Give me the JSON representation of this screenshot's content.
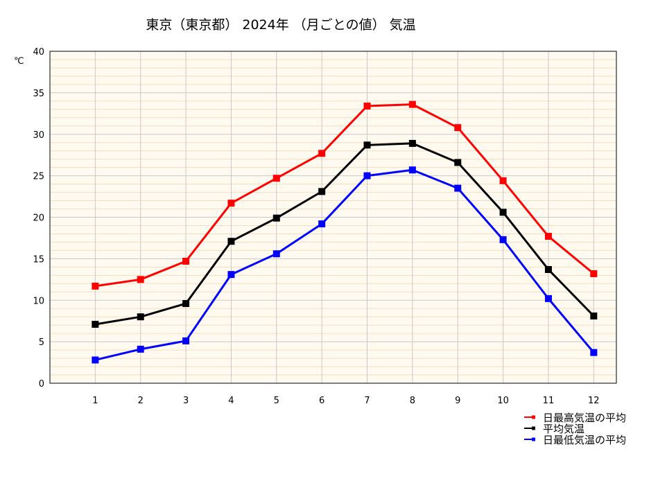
{
  "chart_data": {
    "type": "line",
    "title": "東京（東京都） 2024年 （月ごとの値） 気温",
    "ylabel": "℃",
    "xlabel": "",
    "categories": [
      "1",
      "2",
      "3",
      "4",
      "5",
      "6",
      "7",
      "8",
      "9",
      "10",
      "11",
      "12"
    ],
    "ylim": [
      0,
      40
    ],
    "yticks": [
      "0",
      "5",
      "10",
      "15",
      "20",
      "25",
      "30",
      "35",
      "40"
    ],
    "grid": true,
    "legend_position": "bottom-right",
    "series": [
      {
        "name": "日最高気温の平均",
        "color": "#ff0000",
        "values": [
          11.7,
          12.5,
          14.7,
          21.7,
          24.7,
          27.7,
          33.4,
          33.6,
          30.8,
          24.4,
          17.7,
          13.2
        ]
      },
      {
        "name": "平均気温",
        "color": "#000000",
        "values": [
          7.1,
          8.0,
          9.6,
          17.1,
          19.9,
          23.1,
          28.7,
          28.9,
          26.6,
          20.6,
          13.7,
          8.1
        ]
      },
      {
        "name": "日最低気温の平均",
        "color": "#0000ff",
        "values": [
          2.8,
          4.1,
          5.1,
          13.1,
          15.6,
          19.2,
          25.0,
          25.7,
          23.5,
          17.3,
          10.2,
          3.7
        ]
      }
    ],
    "colors": {
      "plot_bg": "#fffaf0",
      "major_grid": "#c8c8c8",
      "minor_grid": "#f5dcbe"
    }
  }
}
